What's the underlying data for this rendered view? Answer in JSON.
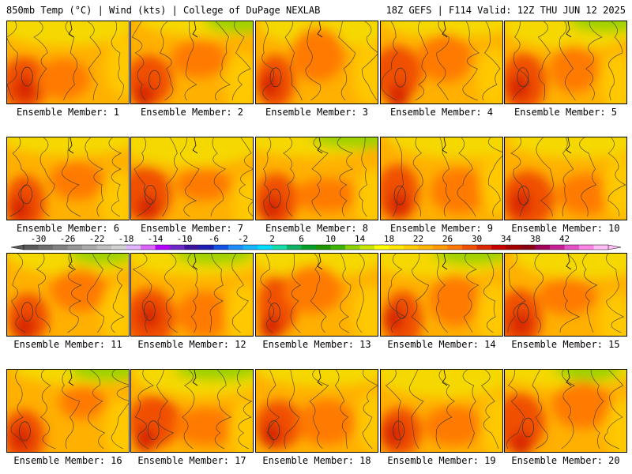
{
  "header": {
    "left": "850mb Temp (°C) | Wind (kts) | College of DuPage NEXLAB",
    "right": "18Z GEFS | F114 Valid: 12Z THU JUN 12 2025"
  },
  "panels": [
    {
      "label": "Ensemble Member: 1"
    },
    {
      "label": "Ensemble Member: 2"
    },
    {
      "label": "Ensemble Member: 3"
    },
    {
      "label": "Ensemble Member: 4"
    },
    {
      "label": "Ensemble Member: 5"
    },
    {
      "label": "Ensemble Member: 6"
    },
    {
      "label": "Ensemble Member: 7"
    },
    {
      "label": "Ensemble Member: 8"
    },
    {
      "label": "Ensemble Member: 9"
    },
    {
      "label": "Ensemble Member: 10"
    },
    {
      "label": "Ensemble Member: 11"
    },
    {
      "label": "Ensemble Member: 12"
    },
    {
      "label": "Ensemble Member: 13"
    },
    {
      "label": "Ensemble Member: 14"
    },
    {
      "label": "Ensemble Member: 15"
    },
    {
      "label": "Ensemble Member: 16"
    },
    {
      "label": "Ensemble Member: 17"
    },
    {
      "label": "Ensemble Member: 18"
    },
    {
      "label": "Ensemble Member: 19"
    },
    {
      "label": "Ensemble Member: 20"
    }
  ],
  "colorbar": {
    "ticks": [
      "-30",
      "-26",
      "-22",
      "-18",
      "-14",
      "-10",
      "-6",
      "-2",
      "2",
      "6",
      "10",
      "14",
      "18",
      "22",
      "26",
      "30",
      "34",
      "38",
      "42"
    ],
    "colors": [
      "#5a5a5a",
      "#6e6e6e",
      "#828282",
      "#969696",
      "#aaaaaa",
      "#bebebe",
      "#d2d2d2",
      "#e1b4ff",
      "#dc64ff",
      "#b400ff",
      "#6e28c8",
      "#3c14a0",
      "#1e1eb4",
      "#1450e6",
      "#1e8cff",
      "#14b4ff",
      "#00dcff",
      "#14dcaa",
      "#0ab464",
      "#00a028",
      "#1e9600",
      "#3cb400",
      "#8cd200",
      "#c8e600",
      "#ffff00",
      "#ffe600",
      "#ffcd00",
      "#ffb400",
      "#ff9b00",
      "#ff7800",
      "#f05000",
      "#dc2800",
      "#c80000",
      "#a50000",
      "#8c0014",
      "#a0005a",
      "#c81e96",
      "#e650c8",
      "#ff82e6",
      "#ffbef5"
    ]
  }
}
